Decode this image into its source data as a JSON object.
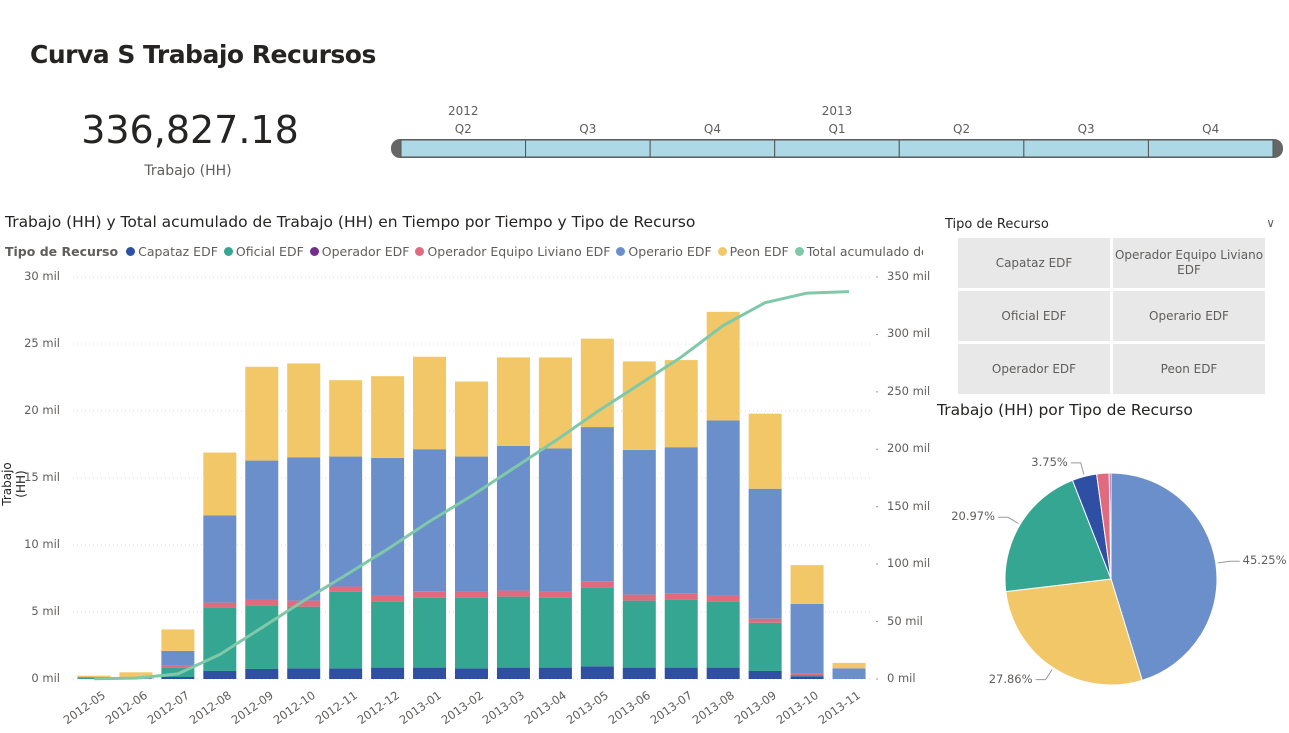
{
  "page": {
    "title": "Curva S Trabajo Recursos",
    "kpi_value": "336,827.18",
    "kpi_label": "Trabajo (HH)"
  },
  "timeline": {
    "years": [
      {
        "label": "2012",
        "at_quarter": 0
      },
      {
        "label": "2013",
        "at_quarter": 3
      }
    ],
    "quarters": [
      "Q2",
      "Q3",
      "Q4",
      "Q1",
      "Q2",
      "Q3",
      "Q4"
    ],
    "fill_color": "#ADD8E6"
  },
  "slicer": {
    "title": "Tipo de Recurso",
    "options": [
      "Capataz EDF",
      "Operador Equipo Liviano EDF",
      "Oficial EDF",
      "Operario EDF",
      "Operador EDF",
      "Peon EDF"
    ]
  },
  "chart_data": [
    {
      "type": "bar",
      "stacked": true,
      "title": "Trabajo (HH) y Total acumulado de Trabajo (HH) en Tiempo por Tiempo y Tipo de Recurso",
      "legend_title": "Tipo de Recurso",
      "legend_text": [
        "Capataz EDF",
        "Oficial EDF",
        "Operador EDF",
        "Operador Equipo Liviano EDF",
        "Operario EDF",
        "Peon EDF",
        "Total acumulado de Trab..."
      ],
      "legend_placement": "top",
      "ylabel": "Trabajo (HH)",
      "ylim": [
        0,
        30000
      ],
      "y_ticks": [
        "0 mil",
        "5 mil",
        "10 mil",
        "15 mil",
        "20 mil",
        "25 mil",
        "30 mil"
      ],
      "y2lim": [
        0,
        350000
      ],
      "y2_ticks": [
        "0 mil",
        "50 mil",
        "100 mil",
        "150 mil",
        "200 mil",
        "250 mil",
        "300 mil",
        "350 mil"
      ],
      "grid": true,
      "categories": [
        "2012-05",
        "2012-06",
        "2012-07",
        "2012-08",
        "2012-09",
        "2012-10",
        "2012-11",
        "2012-12",
        "2013-01",
        "2013-02",
        "2013-03",
        "2013-04",
        "2013-05",
        "2013-06",
        "2013-07",
        "2013-08",
        "2013-09",
        "2013-10",
        "2013-11"
      ],
      "series": [
        {
          "name": "Capataz EDF",
          "color": "#2E4FA3",
          "values": [
            0,
            0,
            150,
            600,
            750,
            800,
            800,
            850,
            850,
            800,
            850,
            850,
            950,
            850,
            850,
            850,
            600,
            200,
            0
          ]
        },
        {
          "name": "Oficial EDF",
          "color": "#35A692",
          "values": [
            100,
            0,
            700,
            4700,
            4700,
            4600,
            5700,
            4900,
            5200,
            5300,
            5300,
            5200,
            5900,
            5000,
            5100,
            4900,
            3600,
            100,
            0
          ]
        },
        {
          "name": "Operador EDF",
          "color": "#742D8E",
          "values": [
            0,
            0,
            0,
            0,
            0,
            0,
            0,
            0,
            0,
            0,
            0,
            0,
            0,
            0,
            0,
            0,
            0,
            0,
            0
          ]
        },
        {
          "name": "Operador Equipo Liviano EDF",
          "color": "#E16A7E",
          "values": [
            0,
            0,
            150,
            400,
            450,
            450,
            400,
            450,
            500,
            400,
            450,
            450,
            450,
            450,
            450,
            450,
            300,
            100,
            0
          ]
        },
        {
          "name": "Operario EDF",
          "color": "#6A8FCB",
          "values": [
            50,
            150,
            1100,
            6500,
            10400,
            10700,
            9700,
            10300,
            10600,
            10100,
            10800,
            10700,
            11500,
            10800,
            10900,
            13100,
            9700,
            5200,
            800
          ]
        },
        {
          "name": "Peon EDF",
          "color": "#F2C767",
          "values": [
            100,
            350,
            1600,
            4700,
            7000,
            7000,
            5700,
            6100,
            6900,
            5600,
            6600,
            6800,
            6600,
            6600,
            6500,
            8100,
            5600,
            2900,
            400
          ]
        }
      ],
      "line_series": {
        "name": "Total acumulado de Trabajo (HH)",
        "color": "#7FC8A9",
        "axis": "secondary",
        "values": [
          250,
          750,
          4450,
          21350,
          44650,
          68200,
          90500,
          113100,
          137200,
          159400,
          183400,
          207400,
          232800,
          256500,
          280300,
          307800,
          327600,
          336000,
          337300
        ]
      }
    },
    {
      "type": "pie",
      "title": "Trabajo (HH) por Tipo de Recurso",
      "slices": [
        {
          "name": "Operario EDF",
          "value": 45.25,
          "label": "45.25%",
          "color": "#6A8FCB"
        },
        {
          "name": "Peon EDF",
          "value": 27.86,
          "label": "27.86%",
          "color": "#F2C767"
        },
        {
          "name": "Oficial EDF",
          "value": 20.97,
          "label": "20.97%",
          "color": "#35A692"
        },
        {
          "name": "Capataz EDF",
          "value": 3.75,
          "label": "3.75%",
          "color": "#2E4FA3"
        },
        {
          "name": "Operador Equipo Liviano EDF",
          "value": 1.9,
          "label": "",
          "color": "#E16A7E"
        },
        {
          "name": "Operador EDF",
          "value": 0.27,
          "label": "",
          "color": "#742D8E"
        }
      ]
    }
  ]
}
